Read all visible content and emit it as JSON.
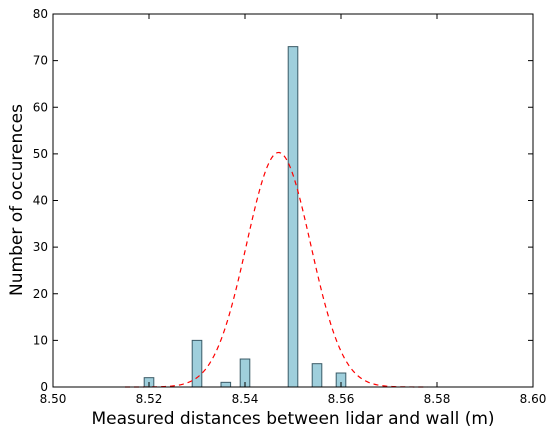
{
  "chart_data": {
    "type": "bar",
    "title": "",
    "xlabel": "Measured distances between lidar and wall (m)",
    "ylabel": "Number of occurences",
    "xlim": [
      8.5,
      8.6
    ],
    "ylim": [
      0,
      80
    ],
    "xticks": [
      "8.50",
      "8.52",
      "8.54",
      "8.56",
      "8.58",
      "8.60"
    ],
    "xtick_values": [
      8.5,
      8.52,
      8.54,
      8.56,
      8.58,
      8.6
    ],
    "yticks": [
      "0",
      "10",
      "20",
      "30",
      "40",
      "50",
      "60",
      "70",
      "80"
    ],
    "ytick_values": [
      0,
      10,
      20,
      30,
      40,
      50,
      60,
      70,
      80
    ],
    "grid": false,
    "bar_width": 0.002,
    "bars": [
      {
        "x": 8.52,
        "value": 2
      },
      {
        "x": 8.53,
        "value": 10
      },
      {
        "x": 8.536,
        "value": 1
      },
      {
        "x": 8.54,
        "value": 6
      },
      {
        "x": 8.55,
        "value": 73
      },
      {
        "x": 8.555,
        "value": 5
      },
      {
        "x": 8.56,
        "value": 3
      }
    ],
    "bar_fill_color": "#9fcfdc",
    "bar_edge_color": "#3a5a66",
    "fit_curve": {
      "style": "dashed",
      "color": "#ff0000",
      "mean": 8.547,
      "sigma": 0.0067,
      "peak": 50.3,
      "x_range": [
        8.515,
        8.578
      ]
    }
  }
}
